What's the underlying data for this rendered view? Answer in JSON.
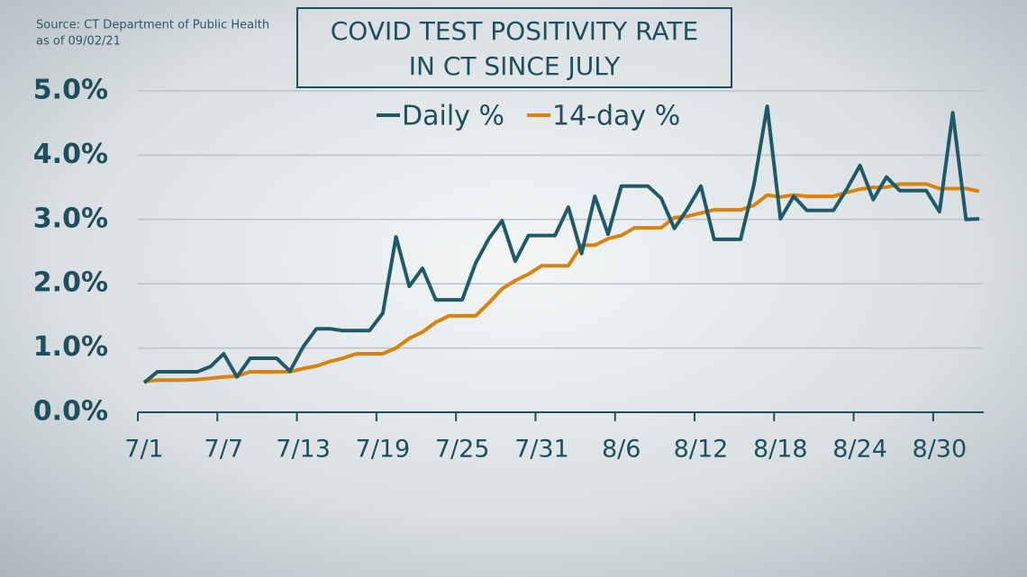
{
  "chart_data": {
    "type": "line",
    "title": [
      "COVID TEST POSITIVITY RATE",
      "IN CT SINCE JULY"
    ],
    "source": "Source: CT Department of Public Health",
    "date_note": "as of 09/02/21",
    "categories": [
      "7/1",
      null,
      null,
      null,
      null,
      null,
      "7/7",
      null,
      null,
      null,
      null,
      null,
      "7/13",
      null,
      null,
      null,
      null,
      null,
      "7/19",
      null,
      null,
      null,
      null,
      null,
      "7/25",
      null,
      null,
      null,
      null,
      null,
      "7/31",
      null,
      null,
      null,
      null,
      null,
      "8/6",
      null,
      null,
      null,
      null,
      null,
      "8/12",
      null,
      null,
      null,
      null,
      null,
      "8/18",
      null,
      null,
      null,
      null,
      null,
      "8/24",
      null,
      null,
      null,
      null,
      null,
      "8/30",
      null,
      null,
      null
    ],
    "series": [
      {
        "name": "Daily %",
        "color": "#1f5a68",
        "values": [
          0.46,
          0.63,
          0.63,
          0.63,
          0.63,
          0.71,
          0.91,
          0.55,
          0.84,
          0.84,
          0.84,
          0.64,
          1.02,
          1.3,
          1.3,
          1.27,
          1.27,
          1.27,
          1.54,
          2.73,
          1.96,
          2.24,
          1.75,
          1.75,
          1.75,
          2.32,
          2.7,
          2.98,
          2.35,
          2.75,
          2.75,
          2.75,
          3.19,
          2.47,
          3.36,
          2.77,
          3.52,
          3.52,
          3.52,
          3.33,
          2.86,
          3.17,
          3.52,
          2.69,
          2.69,
          2.69,
          3.54,
          4.76,
          3.01,
          3.36,
          3.14,
          3.14,
          3.14,
          3.47,
          3.84,
          3.31,
          3.66,
          3.45,
          3.45,
          3.45,
          3.12,
          4.66,
          3.0,
          3.01
        ]
      },
      {
        "name": "14-day %",
        "color": "#d9820f",
        "values": [
          0.48,
          0.5,
          0.5,
          0.5,
          0.51,
          0.53,
          0.55,
          0.56,
          0.63,
          0.63,
          0.63,
          0.63,
          0.68,
          0.72,
          0.79,
          0.84,
          0.91,
          0.91,
          0.91,
          1.0,
          1.15,
          1.25,
          1.4,
          1.5,
          1.5,
          1.5,
          1.7,
          1.92,
          2.05,
          2.15,
          2.28,
          2.28,
          2.28,
          2.6,
          2.6,
          2.7,
          2.75,
          2.87,
          2.87,
          2.87,
          3.03,
          3.05,
          3.1,
          3.15,
          3.15,
          3.15,
          3.22,
          3.38,
          3.35,
          3.38,
          3.36,
          3.36,
          3.36,
          3.42,
          3.47,
          3.5,
          3.5,
          3.55,
          3.55,
          3.55,
          3.48,
          3.48,
          3.48,
          3.44
        ]
      }
    ],
    "ylim": [
      0,
      5
    ],
    "yticks": [
      {
        "value": 0,
        "label": "0.0%"
      },
      {
        "value": 1,
        "label": "1.0%"
      },
      {
        "value": 2,
        "label": "2.0%"
      },
      {
        "value": 3,
        "label": "3.0%"
      },
      {
        "value": 4,
        "label": "4.0%"
      },
      {
        "value": 5,
        "label": "5.0%"
      }
    ],
    "grid": true
  }
}
